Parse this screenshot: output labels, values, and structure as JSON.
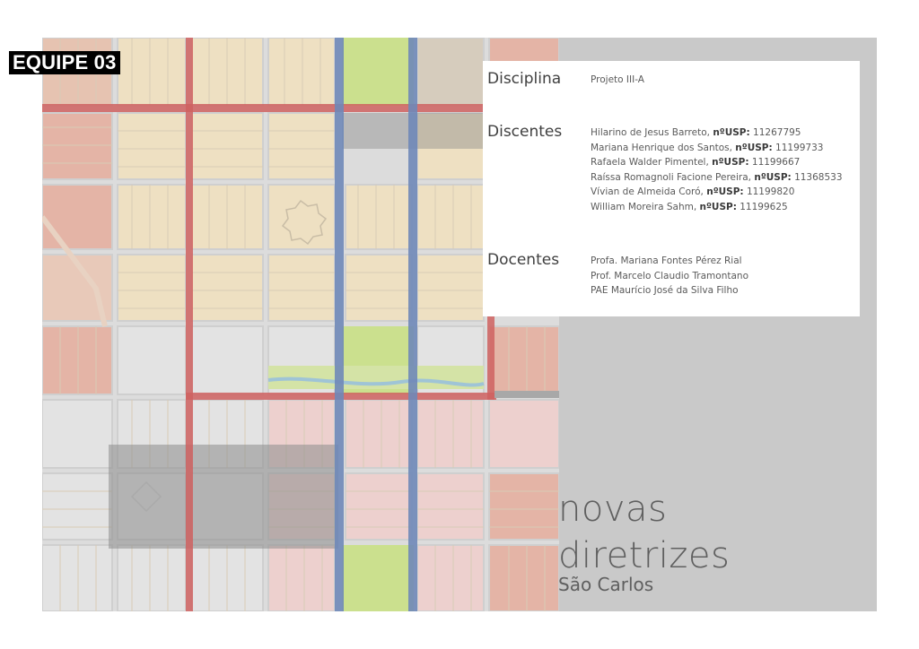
{
  "badge": {
    "text": "EQUIPE 03"
  },
  "info": {
    "disciplina": {
      "label": "Disciplina",
      "value": "Projeto III-A"
    },
    "discentes": {
      "label": "Discentes",
      "students": [
        {
          "name": "Hilarino de Jesus Barreto,  ",
          "usp_label": "nºUSP:",
          "usp": " 11267795"
        },
        {
          "name": "Mariana Henrique dos Santos, ",
          "usp_label": "nºUSP:",
          "usp": " 11199733"
        },
        {
          "name": "Rafaela Walder Pimentel, ",
          "usp_label": "nºUSP:",
          "usp": " 11199667"
        },
        {
          "name": "Raíssa Romagnoli Facione Pereira, ",
          "usp_label": "nºUSP:",
          "usp": " 11368533"
        },
        {
          "name": "Vívian de Almeida Coró, ",
          "usp_label": "nºUSP:",
          "usp": " 11199820"
        },
        {
          "name": "William Moreira Sahm, ",
          "usp_label": "nºUSP:",
          "usp": " 11199625"
        }
      ]
    },
    "docentes": {
      "label": "Docentes",
      "professors": [
        "Profa. Mariana Fontes Pérez Rial",
        "Prof. Marcelo Claudio Tramontano",
        "PAE Maurício José da Silva Filho"
      ]
    }
  },
  "title": {
    "line1": "novas",
    "line2": "diretrizes",
    "subtitle": "São Carlos"
  },
  "colors": {
    "slide_background": "#c9c9c9",
    "block_beige": "#eee0c2",
    "block_salmon": "#e4b4a6",
    "block_pink": "#edd0ce",
    "block_gray": "#e3e3e3",
    "street_red": "#cf6260",
    "street_blue": "#6f88b8",
    "park_green": "#cbe08e",
    "overlay_gray": "#8c8c8c"
  }
}
